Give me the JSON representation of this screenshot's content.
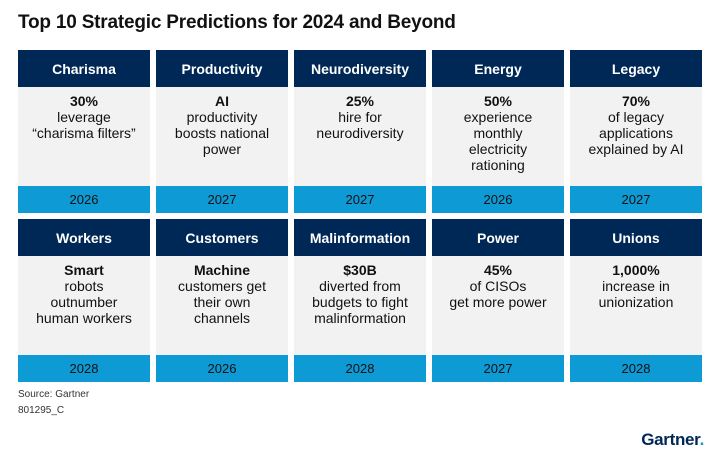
{
  "title": "Top 10 Strategic Predictions for 2024 and Beyond",
  "cards": [
    {
      "head": "Charisma",
      "highlight": "30%",
      "text": "leverage\n“charisma filters”",
      "year": "2026"
    },
    {
      "head": "Productivity",
      "highlight": "AI",
      "text": "productivity\nboosts national\npower",
      "year": "2027"
    },
    {
      "head": "Neurodiversity",
      "highlight": "25%",
      "text": "hire for\nneurodiversity",
      "year": "2027"
    },
    {
      "head": "Energy",
      "highlight": "50%",
      "text": "experience\nmonthly\nelectricity\nrationing",
      "year": "2026"
    },
    {
      "head": "Legacy",
      "highlight": "70%",
      "text": "of legacy\napplications\nexplained by AI",
      "year": "2027"
    },
    {
      "head": "Workers",
      "highlight": "Smart",
      "text": "robots\noutnumber\nhuman workers",
      "year": "2028"
    },
    {
      "head": "Customers",
      "highlight": "Machine",
      "text": "customers get\ntheir own\nchannels",
      "year": "2026"
    },
    {
      "head": "Malinformation",
      "highlight": "$30B",
      "text": "diverted from\nbudgets to fight\nmalinformation",
      "year": "2028"
    },
    {
      "head": "Power",
      "highlight": "45%",
      "text": "of CISOs\nget more power",
      "year": "2027"
    },
    {
      "head": "Unions",
      "highlight": "1,000%",
      "text": "increase in\nunionization",
      "year": "2028"
    }
  ],
  "source": "Source: Gartner",
  "code": "801295_C",
  "logo": "Gartner",
  "logo_dot": ".",
  "colors": {
    "header": "#002856",
    "year_bar": "#0e9ad5",
    "card_bg": "#f2f2f2"
  }
}
